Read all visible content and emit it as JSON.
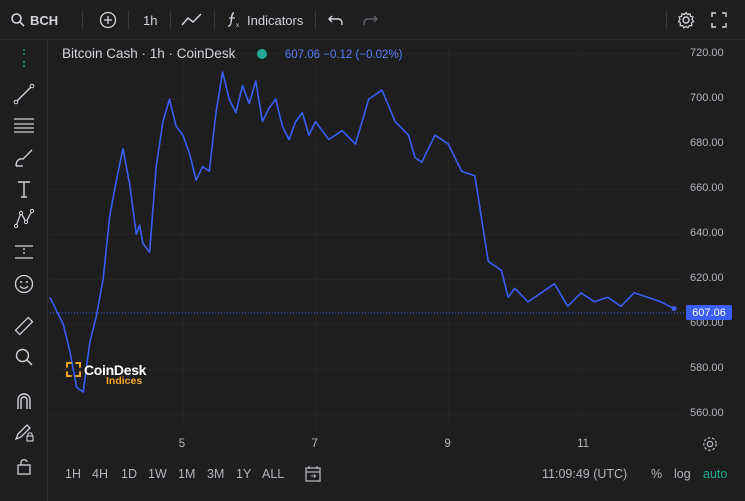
{
  "toolbar": {
    "symbol": "BCH",
    "interval": "1h",
    "indicators_label": "Indicators"
  },
  "legend": {
    "title": "Bitcoin Cash · 1h · CoinDesk",
    "values": "607.06 −0.12 (−0.02%)"
  },
  "watermark": {
    "brand": "CoinDesk",
    "sub": "Indices"
  },
  "price_axis": [
    "720.00",
    "700.00",
    "680.00",
    "660.00",
    "640.00",
    "620.00",
    "600.00",
    "580.00",
    "560.00"
  ],
  "last_price_label": "607.06",
  "time_axis": [
    "5",
    "7",
    "9",
    "11"
  ],
  "bottom": {
    "ranges": [
      "1H",
      "4H",
      "1D",
      "1W",
      "1M",
      "3M",
      "1Y",
      "ALL"
    ],
    "time": "11:09:49 (UTC)",
    "percent": "%",
    "log": "log",
    "auto": "auto"
  },
  "colors": {
    "line": "#3b5ef5",
    "accent": "#22ab94",
    "logo_orange": "#f5a623"
  },
  "icons": [
    "search-icon",
    "plus-circle-icon",
    "line-chart-icon",
    "function-icon",
    "undo-icon",
    "redo-icon",
    "gear-icon",
    "fullscreen-icon"
  ],
  "chart_data": {
    "type": "line",
    "title": "Bitcoin Cash · 1h · CoinDesk",
    "xlabel": "",
    "ylabel": "",
    "x_ticks": [
      "5",
      "7",
      "9",
      "11"
    ],
    "ylim": [
      554,
      724
    ],
    "x": [
      3.0,
      3.1,
      3.2,
      3.3,
      3.4,
      3.5,
      3.6,
      3.7,
      3.8,
      3.9,
      4.0,
      4.1,
      4.2,
      4.3,
      4.35,
      4.4,
      4.5,
      4.6,
      4.7,
      4.8,
      4.9,
      5.0,
      5.1,
      5.2,
      5.3,
      5.4,
      5.5,
      5.6,
      5.7,
      5.8,
      5.9,
      6.0,
      6.1,
      6.2,
      6.3,
      6.4,
      6.5,
      6.6,
      6.7,
      6.8,
      6.9,
      7.0,
      7.2,
      7.4,
      7.6,
      7.8,
      8.0,
      8.2,
      8.4,
      8.5,
      8.6,
      8.8,
      9.0,
      9.2,
      9.4,
      9.6,
      9.8,
      9.9,
      10.0,
      10.2,
      10.4,
      10.6,
      10.8,
      11.0,
      11.2,
      11.4,
      11.6,
      11.8,
      12.0,
      12.2,
      12.4
    ],
    "values": [
      612,
      606,
      600,
      588,
      572,
      570,
      592,
      604,
      620,
      648,
      664,
      678,
      662,
      640,
      644,
      636,
      632,
      670,
      690,
      700,
      688,
      684,
      676,
      664,
      670,
      668,
      694,
      712,
      700,
      694,
      706,
      698,
      708,
      690,
      696,
      700,
      688,
      682,
      690,
      694,
      684,
      690,
      682,
      686,
      680,
      700,
      704,
      690,
      684,
      674,
      672,
      684,
      680,
      668,
      666,
      628,
      624,
      612,
      616,
      610,
      614,
      618,
      608,
      614,
      610,
      612,
      608,
      614,
      612,
      610,
      607
    ]
  }
}
